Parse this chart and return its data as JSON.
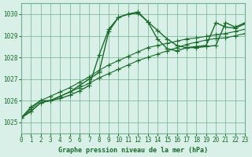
{
  "bg_color": "#d8f0e8",
  "grid_color": "#70b090",
  "line_color": "#1a6b2a",
  "title": "Graphe pression niveau de la mer (hPa)",
  "xlim": [
    0,
    23
  ],
  "ylim": [
    1024.5,
    1030.5
  ],
  "yticks": [
    1025,
    1026,
    1027,
    1028,
    1029,
    1030
  ],
  "xticks": [
    0,
    1,
    2,
    3,
    4,
    5,
    6,
    7,
    8,
    9,
    10,
    11,
    12,
    13,
    14,
    15,
    16,
    17,
    18,
    19,
    20,
    21,
    22,
    23
  ],
  "series1_x": [
    0,
    1,
    2,
    3,
    4,
    5,
    6,
    7,
    8,
    9,
    10,
    11,
    12,
    13,
    14,
    15,
    16,
    17,
    18,
    19,
    20,
    21,
    22,
    23
  ],
  "series1_y": [
    1025.2,
    1025.5,
    1025.9,
    1026.0,
    1026.2,
    1026.4,
    1026.6,
    1026.8,
    1027.05,
    1027.25,
    1027.45,
    1027.65,
    1027.85,
    1028.0,
    1028.15,
    1028.3,
    1028.45,
    1028.6,
    1028.7,
    1028.8,
    1028.87,
    1028.9,
    1029.0,
    1029.1
  ],
  "series2_x": [
    0,
    1,
    2,
    3,
    4,
    5,
    6,
    7,
    8,
    9,
    10,
    11,
    12,
    13,
    14,
    15,
    16,
    17,
    18,
    19,
    20,
    21,
    22,
    23
  ],
  "series2_y": [
    1025.2,
    1025.6,
    1026.0,
    1026.2,
    1026.4,
    1026.6,
    1026.85,
    1027.1,
    1027.4,
    1027.65,
    1027.85,
    1028.05,
    1028.25,
    1028.45,
    1028.55,
    1028.65,
    1028.75,
    1028.85,
    1028.9,
    1028.97,
    1029.05,
    1029.1,
    1029.2,
    1029.3
  ],
  "series3_x": [
    0,
    1,
    2,
    3,
    4,
    5,
    6,
    7,
    8,
    9,
    10,
    11,
    12,
    13,
    14,
    15,
    16,
    17,
    18,
    19,
    20,
    21,
    22,
    23
  ],
  "series3_y": [
    1025.2,
    1025.7,
    1026.0,
    1026.0,
    1026.2,
    1026.4,
    1026.7,
    1027.0,
    1027.3,
    1029.2,
    1029.85,
    1030.0,
    1030.1,
    1029.65,
    1029.25,
    1028.85,
    1028.55,
    1028.45,
    1028.45,
    1028.5,
    1028.55,
    1029.6,
    1029.4,
    1029.6
  ],
  "series4_x": [
    0,
    1,
    2,
    3,
    4,
    5,
    6,
    7,
    8,
    9,
    10,
    11,
    12,
    13,
    14,
    15,
    16,
    17,
    18,
    19,
    20,
    21,
    22,
    23
  ],
  "series4_y": [
    1025.2,
    1025.5,
    1025.9,
    1026.0,
    1026.1,
    1026.25,
    1026.45,
    1026.7,
    1028.1,
    1029.3,
    1029.85,
    1030.0,
    1030.05,
    1029.65,
    1028.85,
    1028.4,
    1028.3,
    1028.45,
    1028.5,
    1028.55,
    1029.6,
    1029.4,
    1029.35,
    1029.55
  ]
}
